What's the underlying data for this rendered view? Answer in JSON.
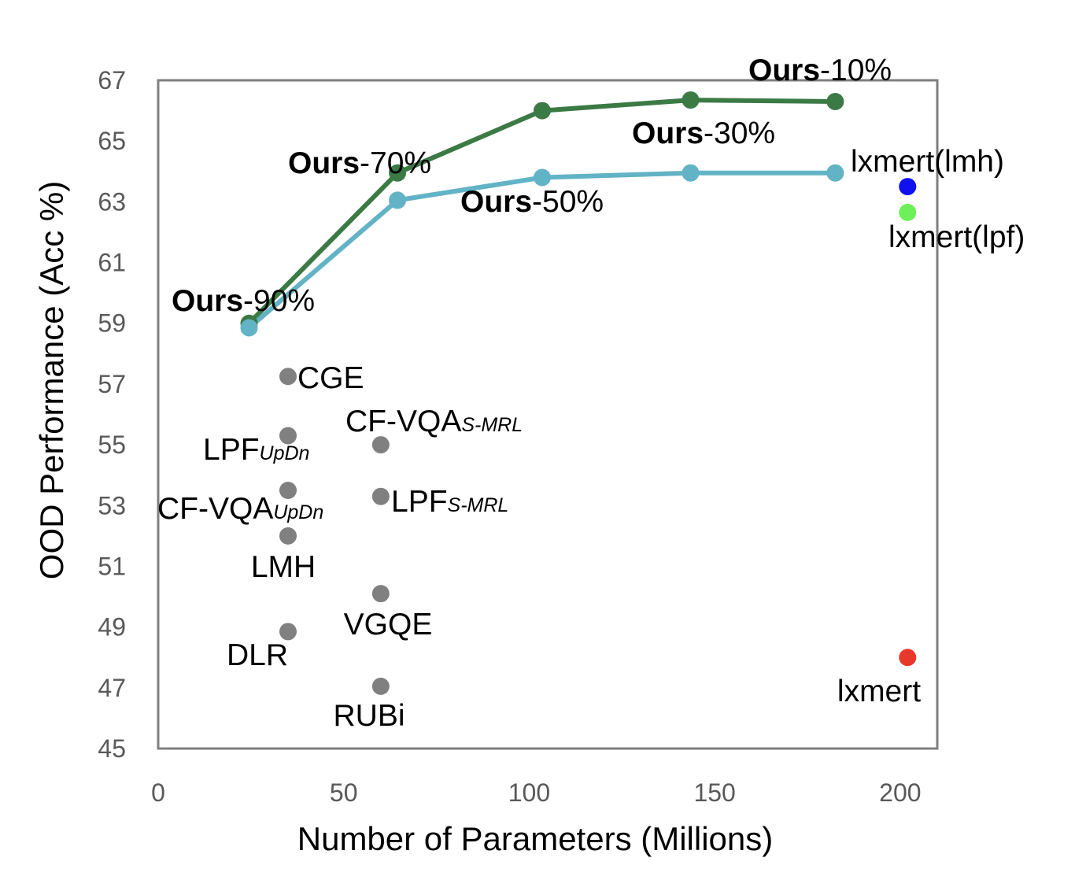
{
  "chart_data": {
    "type": "scatter",
    "title": "",
    "xlabel": "Number of Parameters (Millions)",
    "ylabel": "OOD Performance (Acc %)",
    "xlim": [
      0,
      210
    ],
    "ylim": [
      45,
      67
    ],
    "xticks": [
      "0",
      "50",
      "100",
      "150",
      "200"
    ],
    "yticks": [
      "45",
      "47",
      "49",
      "51",
      "53",
      "55",
      "57",
      "59",
      "61",
      "63",
      "65",
      "67"
    ],
    "grid": false,
    "legend": "none",
    "series": [
      {
        "color": "#3b7a45",
        "line": true,
        "points": [
          {
            "x": 24.5,
            "y": 59.0
          },
          {
            "x": 64.5,
            "y": 63.95
          },
          {
            "x": 103.5,
            "y": 66.0
          },
          {
            "x": 143.5,
            "y": 66.35
          },
          {
            "x": 182.5,
            "y": 66.3
          }
        ]
      },
      {
        "color": "#62b3c5",
        "line": true,
        "points": [
          {
            "x": 24.5,
            "y": 58.85
          },
          {
            "x": 64.5,
            "y": 63.05
          },
          {
            "x": 103.5,
            "y": 63.8
          },
          {
            "x": 143.5,
            "y": 63.95
          },
          {
            "x": 182.5,
            "y": 63.95
          }
        ]
      }
    ],
    "ours_labels": [
      {
        "bold": "Ours",
        "text": "-90%"
      },
      {
        "bold": "Ours",
        "text": "-70%"
      },
      {
        "bold": "Ours",
        "text": "-50%"
      },
      {
        "bold": "Ours",
        "text": "-30%"
      },
      {
        "bold": "Ours",
        "text": "-10%"
      }
    ],
    "baselines": [
      {
        "label": "CGE",
        "sub": "",
        "x": 35,
        "y": 57.25,
        "color": "#808080"
      },
      {
        "label": "LPF",
        "sub": "UpDn",
        "x": 35,
        "y": 55.3,
        "color": "#808080"
      },
      {
        "label": "CF-VQA",
        "sub": "S-MRL",
        "x": 60,
        "y": 55.0,
        "color": "#808080"
      },
      {
        "label": "CF-VQA",
        "sub": "UpDn",
        "x": 35,
        "y": 53.5,
        "color": "#808080"
      },
      {
        "label": "LPF",
        "sub": "S-MRL",
        "x": 60,
        "y": 53.3,
        "color": "#808080"
      },
      {
        "label": "LMH",
        "sub": "",
        "x": 35,
        "y": 52.0,
        "color": "#808080"
      },
      {
        "label": "VGQE",
        "sub": "",
        "x": 60,
        "y": 50.1,
        "color": "#808080"
      },
      {
        "label": "DLR",
        "sub": "",
        "x": 35,
        "y": 48.85,
        "color": "#808080"
      },
      {
        "label": "RUBi",
        "sub": "",
        "x": 60,
        "y": 47.05,
        "color": "#808080"
      },
      {
        "label": "lxmert(lmh)",
        "sub": "",
        "x": 202,
        "y": 63.5,
        "color": "#1010f0"
      },
      {
        "label": "lxmert(lpf)",
        "sub": "",
        "x": 202,
        "y": 62.65,
        "color": "#6ef05a"
      },
      {
        "label": "lxmert",
        "sub": "",
        "x": 202,
        "y": 48.0,
        "color": "#e8382b"
      }
    ]
  }
}
